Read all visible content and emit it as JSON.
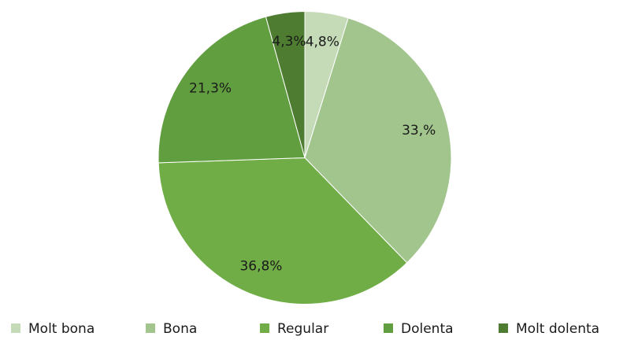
{
  "chart_data": {
    "type": "pie",
    "categories": [
      "Molt bona",
      "Bona",
      "Regular",
      "Dolenta",
      "Molt dolenta"
    ],
    "values": [
      4.8,
      33,
      36.8,
      21.3,
      4.3
    ],
    "value_labels": [
      "4,8%",
      "33,%",
      "36,8%",
      "21,3%",
      "4,3%"
    ],
    "colors": [
      "#c5dbb8",
      "#a2c58e",
      "#70ad47",
      "#619e3f",
      "#4e7d32"
    ],
    "legend": "bottom"
  }
}
